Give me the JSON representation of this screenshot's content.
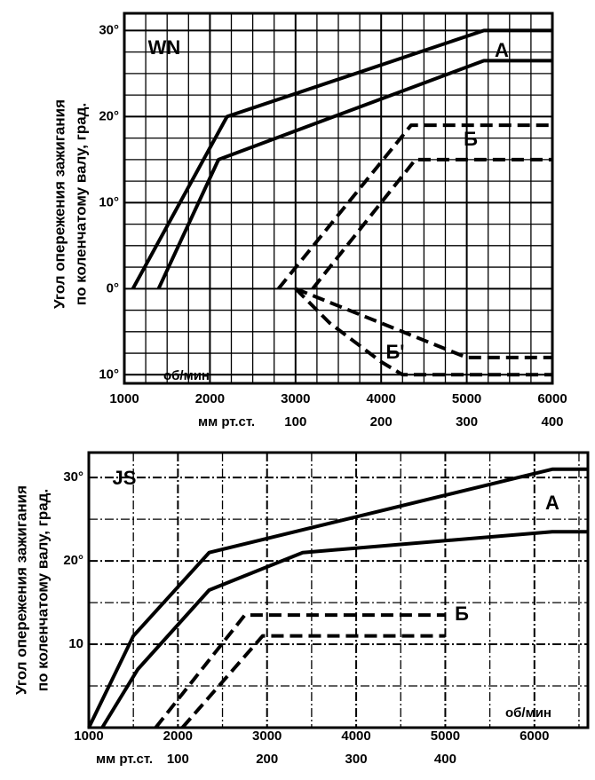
{
  "chart_data": [
    {
      "type": "line",
      "ylabel": [
        "Угол опережения зажигания",
        "по коленчатому валу, град."
      ],
      "xlabel": "об/мин",
      "x2label": "мм рт.ст.",
      "annotations": [
        "WN",
        "A",
        "Б",
        "Б'"
      ],
      "xlim": [
        1000,
        6000
      ],
      "xticks": [
        1000,
        2000,
        3000,
        4000,
        5000,
        6000
      ],
      "x2lim": [
        -100,
        400
      ],
      "x2ticks": [
        100,
        200,
        300,
        400
      ],
      "ylim": [
        -11,
        32
      ],
      "yticks": [
        {
          "value": 30,
          "label": "30°"
        },
        {
          "value": 20,
          "label": "20°"
        },
        {
          "value": 10,
          "label": "10°"
        },
        {
          "value": 0,
          "label": "0°"
        },
        {
          "value": -10,
          "label": "10°"
        }
      ],
      "grid": true,
      "series": [
        {
          "color": "#000000",
          "dash": false,
          "x": [
            1100,
            2200,
            5200,
            6000
          ],
          "values": [
            0,
            20,
            30,
            30
          ]
        },
        {
          "color": "#000000",
          "dash": false,
          "x": [
            1400,
            2100,
            5200,
            6000
          ],
          "values": [
            0,
            15,
            26.5,
            26.5
          ]
        },
        {
          "color": "#000000",
          "dash": true,
          "x": [
            2800,
            4350,
            6000
          ],
          "values": [
            0,
            19,
            19
          ]
        },
        {
          "color": "#000000",
          "dash": true,
          "x": [
            3200,
            4400,
            6000
          ],
          "values": [
            0,
            15,
            15
          ]
        },
        {
          "color": "#000000",
          "dash": true,
          "x": [
            3000,
            5000,
            6000
          ],
          "values": [
            0,
            -8,
            -8
          ]
        },
        {
          "color": "#000000",
          "dash": true,
          "x": [
            3000,
            3400,
            4000,
            4250,
            6000
          ],
          "values": [
            0,
            -4,
            -8.5,
            -10,
            -10
          ]
        }
      ]
    },
    {
      "type": "line",
      "ylabel": [
        "Угол опережения зажигания",
        "по коленчатому валу, град."
      ],
      "xlabel": "об/мин",
      "x2label": "мм рт.ст.",
      "annotations": [
        "JS",
        "A",
        "Б"
      ],
      "xlim": [
        1000,
        6600
      ],
      "xticks": [
        1000,
        2000,
        3000,
        4000,
        5000,
        6000
      ],
      "x2lim": [
        0,
        560
      ],
      "x2ticks": [
        100,
        200,
        300,
        400
      ],
      "ylim": [
        0,
        33
      ],
      "yticks": [
        10,
        {
          "value": 20,
          "label": "20°"
        },
        {
          "value": 30,
          "label": "30°"
        }
      ],
      "grid": true,
      "series": [
        {
          "color": "#000000",
          "dash": false,
          "x": [
            1000,
            1500,
            2350,
            6200,
            6600
          ],
          "values": [
            0,
            11,
            21,
            31,
            31
          ]
        },
        {
          "color": "#000000",
          "dash": false,
          "x": [
            1150,
            1550,
            2350,
            3400,
            6200,
            6600
          ],
          "values": [
            0,
            7,
            16.5,
            21,
            23.5,
            23.5
          ]
        },
        {
          "color": "#000000",
          "dash": true,
          "x": [
            1750,
            2750,
            5000
          ],
          "values": [
            0,
            13.5,
            13.5
          ]
        },
        {
          "color": "#000000",
          "dash": true,
          "x": [
            2050,
            2950,
            5000
          ],
          "values": [
            0,
            11,
            11
          ]
        }
      ]
    }
  ]
}
